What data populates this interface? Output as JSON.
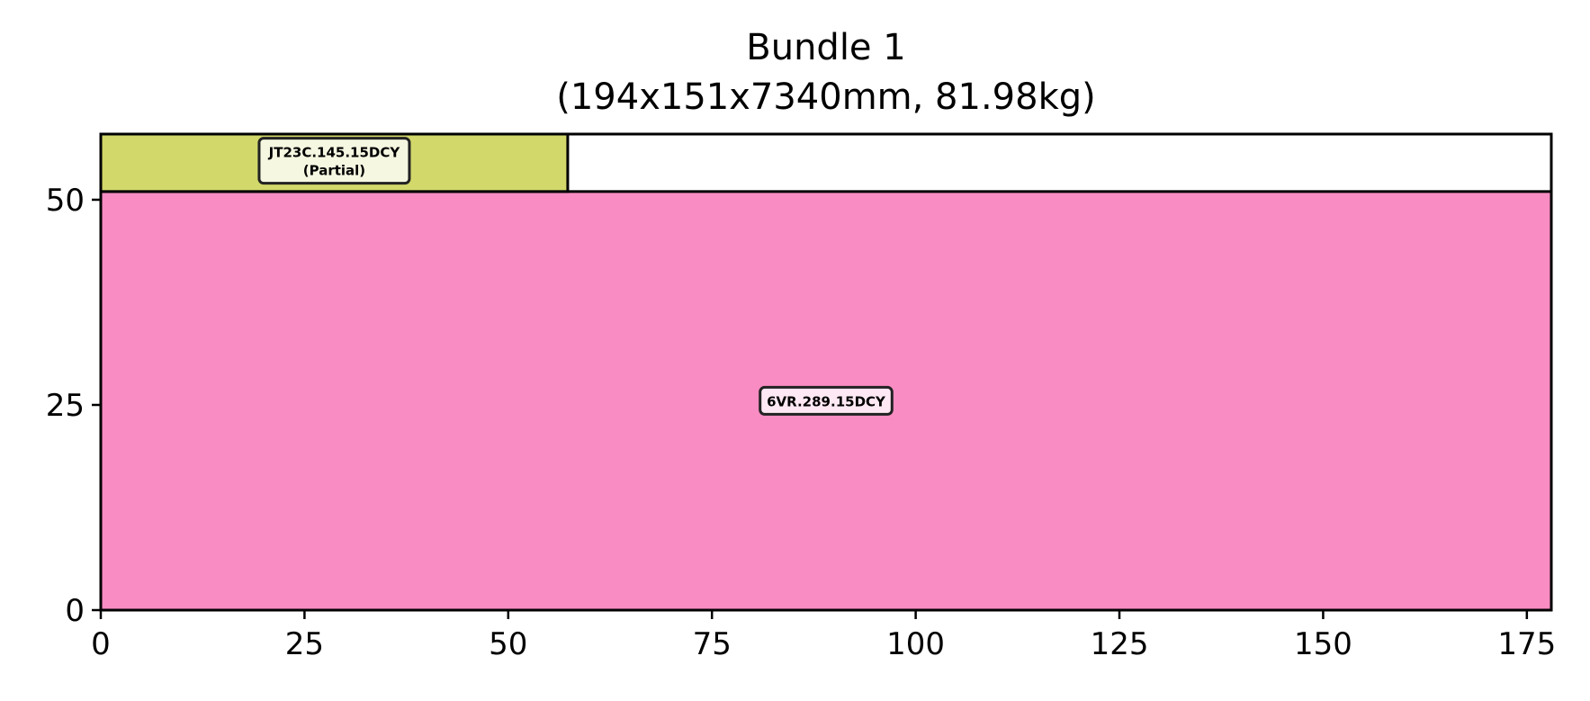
{
  "chart_data": {
    "type": "rectangle-layout",
    "title": "Bundle 1",
    "subtitle": "(194x151x7340mm, 81.98kg)",
    "xlabel": "",
    "ylabel": "",
    "xlim": [
      0,
      178
    ],
    "ylim": [
      0,
      58
    ],
    "x_ticks": [
      0,
      25,
      50,
      75,
      100,
      125,
      150,
      175
    ],
    "y_ticks": [
      0,
      25,
      50
    ],
    "grid": false,
    "rectangles": [
      {
        "label": "6VR.289.15DCY",
        "x": 0,
        "y": 0,
        "width": 178,
        "height": 51,
        "color": "#f98cc3"
      },
      {
        "label": "JT23C.145.15DCY",
        "label_line2": "(Partial)",
        "x": 0,
        "y": 51,
        "width": 57.3,
        "height": 7.5,
        "color": "#d2d86a"
      }
    ]
  }
}
